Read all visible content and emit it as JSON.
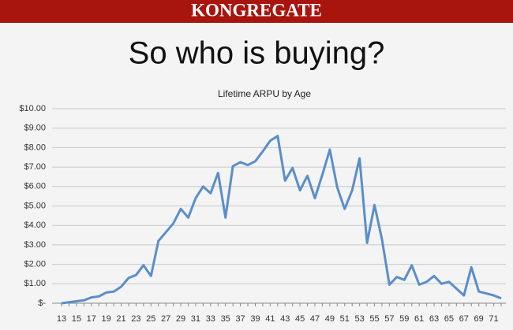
{
  "header": {
    "brand": "KONGREGATE"
  },
  "slide_title": "So who is buying?",
  "chart_data": {
    "type": "line",
    "title": "Lifetime ARPU by Age",
    "categories": [
      "13",
      null,
      "15",
      null,
      "17",
      null,
      "19",
      null,
      "21",
      null,
      "23",
      null,
      "25",
      null,
      "27",
      null,
      "29",
      null,
      "31",
      null,
      "33",
      null,
      "35",
      null,
      "37",
      null,
      "39",
      null,
      "41",
      null,
      "43",
      null,
      "45",
      null,
      "47",
      null,
      "49",
      null,
      "51",
      null,
      "53",
      null,
      "55",
      null,
      "57",
      null,
      "59",
      null,
      "61",
      null,
      "63",
      null,
      "65",
      null,
      "67",
      null,
      "69",
      null,
      "71",
      null
    ],
    "series": [
      {
        "name": "Lifetime ARPU",
        "color": "#5b8ec9",
        "values": [
          0.0,
          0.05,
          0.1,
          0.15,
          0.3,
          0.35,
          0.55,
          0.6,
          0.85,
          1.3,
          1.45,
          1.95,
          1.4,
          3.2,
          3.65,
          4.1,
          4.85,
          4.4,
          5.4,
          6.0,
          5.65,
          6.7,
          4.4,
          7.05,
          7.25,
          7.1,
          7.3,
          7.8,
          8.35,
          8.6,
          6.3,
          6.95,
          5.8,
          6.55,
          5.4,
          6.6,
          7.9,
          5.95,
          4.85,
          5.8,
          7.45,
          3.1,
          5.05,
          3.3,
          0.95,
          1.35,
          1.2,
          1.95,
          0.95,
          1.1,
          1.4,
          1.0,
          1.1,
          0.75,
          0.4,
          1.85,
          0.6,
          0.5,
          0.4,
          0.25
        ]
      }
    ],
    "ylim": [
      0,
      10
    ],
    "yticks": [
      {
        "value": 0,
        "label": "$-"
      },
      {
        "value": 1,
        "label": "$1.00"
      },
      {
        "value": 2,
        "label": "$2.00"
      },
      {
        "value": 3,
        "label": "$3.00"
      },
      {
        "value": 4,
        "label": "$4.00"
      },
      {
        "value": 5,
        "label": "$5.00"
      },
      {
        "value": 6,
        "label": "$6.00"
      },
      {
        "value": 7,
        "label": "$7.00"
      },
      {
        "value": 8,
        "label": "$8.00"
      },
      {
        "value": 9,
        "label": "$9.00"
      },
      {
        "value": 10,
        "label": "$10.00"
      }
    ],
    "grid": true
  }
}
